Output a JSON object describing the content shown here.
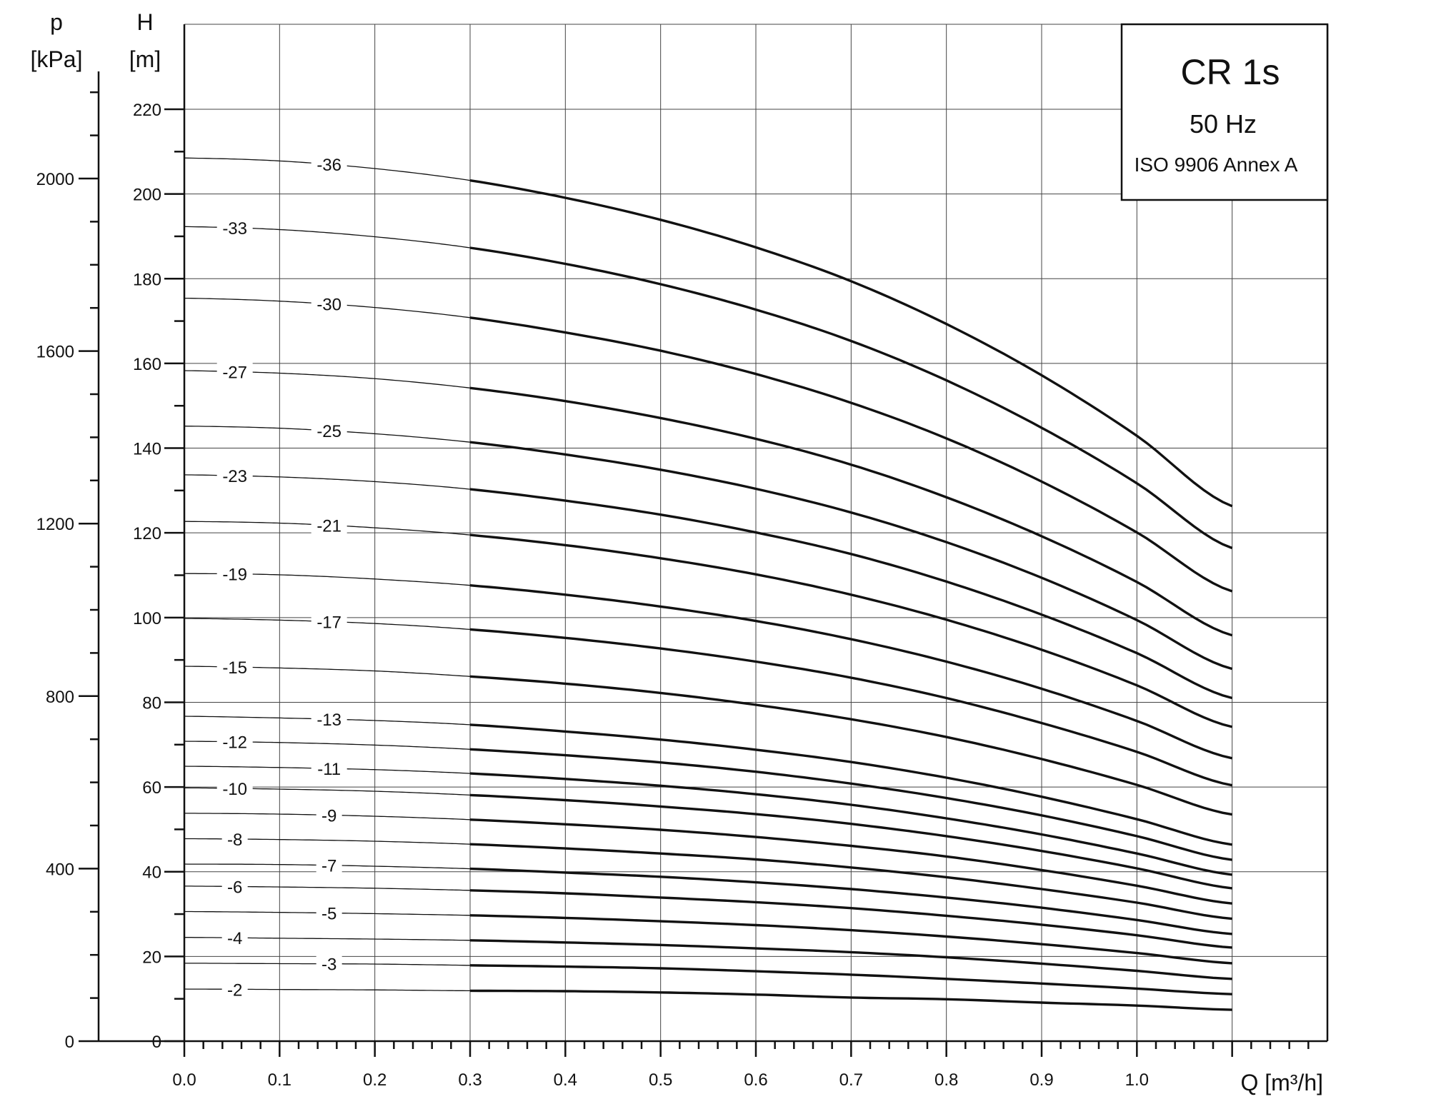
{
  "chart_data": {
    "type": "line",
    "title": "CR 1s",
    "subtitle": "50 Hz",
    "note": "ISO 9906 Annex A",
    "xlabel": "Q [m³/h]",
    "ylabel_left_title": "H",
    "ylabel_left_unit": "[m]",
    "ylabel_outer_title": "p",
    "ylabel_outer_unit": "[kPa]",
    "xlim": [
      0,
      1.2
    ],
    "ylim": [
      0,
      220
    ],
    "plim": [
      0,
      2000
    ],
    "x_ticks": [
      "0.0",
      "0.1",
      "0.2",
      "0.3",
      "0.4",
      "0.5",
      "0.6",
      "0.7",
      "0.8",
      "0.9",
      "1.0"
    ],
    "x_tick_values": [
      0,
      0.1,
      0.2,
      0.3,
      0.4,
      0.5,
      0.6,
      0.7,
      0.8,
      0.9,
      1.0
    ],
    "h_ticks": [
      "0",
      "20",
      "40",
      "60",
      "80",
      "100",
      "120",
      "140",
      "160",
      "180",
      "200",
      "220"
    ],
    "h_tick_values": [
      0,
      20,
      40,
      60,
      80,
      100,
      120,
      140,
      160,
      180,
      200,
      220
    ],
    "p_ticks": [
      "0",
      "400",
      "800",
      "1200",
      "1600",
      "2000"
    ],
    "p_tick_values": [
      0,
      400,
      800,
      1200,
      1600,
      2000
    ],
    "grid": true,
    "operating_range_q": [
      0.3,
      1.1
    ],
    "x_samples": [
      0,
      0.1,
      0.2,
      0.3,
      0.4,
      0.5,
      0.6,
      0.7,
      0.8,
      0.9,
      1.0,
      1.1
    ],
    "series": [
      {
        "name": "-2",
        "values": [
          12.3,
          12.2,
          12.1,
          11.9,
          11.8,
          11.5,
          11.0,
          10.3,
          9.9,
          9.1,
          8.4,
          7.4
        ]
      },
      {
        "name": "-3",
        "values": [
          18.4,
          18.3,
          18.2,
          17.9,
          17.6,
          17.2,
          16.5,
          15.7,
          14.7,
          13.6,
          12.4,
          11.1
        ]
      },
      {
        "name": "-4",
        "values": [
          24.5,
          24.3,
          24.1,
          23.8,
          23.3,
          22.7,
          21.9,
          21.0,
          19.8,
          18.3,
          16.6,
          14.7
        ]
      },
      {
        "name": "-5",
        "values": [
          30.6,
          30.4,
          30.1,
          29.7,
          29.1,
          28.3,
          27.4,
          26.2,
          24.7,
          22.9,
          20.8,
          18.4
        ]
      },
      {
        "name": "-6",
        "values": [
          36.6,
          36.4,
          36.1,
          35.6,
          34.9,
          33.9,
          32.8,
          31.4,
          29.6,
          27.5,
          25.0,
          22.1
        ]
      },
      {
        "name": "-7",
        "values": [
          41.8,
          41.7,
          41.3,
          40.7,
          39.8,
          38.8,
          37.5,
          35.9,
          33.9,
          31.5,
          28.6,
          25.3
        ]
      },
      {
        "name": "-8",
        "values": [
          47.8,
          47.6,
          47.2,
          46.5,
          45.5,
          44.3,
          42.9,
          41.0,
          38.7,
          35.9,
          32.7,
          28.9
        ]
      },
      {
        "name": "-9",
        "values": [
          53.8,
          53.6,
          53.1,
          52.3,
          51.2,
          49.9,
          48.2,
          46.1,
          43.6,
          40.4,
          36.7,
          32.5
        ]
      },
      {
        "name": "-10",
        "values": [
          59.8,
          59.5,
          59.0,
          58.1,
          56.9,
          55.4,
          53.6,
          51.3,
          48.4,
          44.9,
          40.8,
          36.1
        ]
      },
      {
        "name": "-11",
        "values": [
          64.9,
          64.6,
          64.1,
          63.2,
          61.9,
          60.3,
          58.3,
          55.8,
          52.6,
          48.8,
          44.3,
          39.3
        ]
      },
      {
        "name": "-12",
        "values": [
          70.8,
          70.5,
          69.9,
          68.9,
          67.5,
          65.8,
          63.6,
          60.8,
          57.4,
          53.3,
          48.4,
          42.8
        ]
      },
      {
        "name": "-13",
        "values": [
          76.7,
          76.3,
          75.7,
          74.7,
          73.1,
          71.2,
          68.8,
          65.9,
          62.2,
          57.7,
          52.4,
          46.4
        ]
      },
      {
        "name": "-15",
        "values": [
          88.5,
          88.1,
          87.4,
          86.1,
          84.4,
          82.2,
          79.4,
          76.0,
          71.8,
          66.6,
          60.5,
          53.5
        ]
      },
      {
        "name": "-17",
        "values": [
          99.8,
          99.4,
          98.6,
          97.2,
          95.2,
          92.7,
          89.6,
          85.8,
          81.0,
          75.1,
          68.3,
          60.4
        ]
      },
      {
        "name": "-19",
        "values": [
          110.4,
          110.1,
          109.1,
          107.6,
          105.4,
          102.6,
          99.2,
          94.9,
          89.6,
          83.2,
          75.6,
          66.8
        ]
      },
      {
        "name": "-21",
        "values": [
          122.7,
          122.3,
          121.2,
          119.5,
          117.1,
          114.0,
          110.2,
          105.4,
          99.5,
          92.4,
          84.0,
          74.2
        ]
      },
      {
        "name": "-23",
        "values": [
          133.7,
          133.2,
          132.1,
          130.3,
          127.6,
          124.3,
          120.1,
          115.0,
          108.5,
          100.7,
          91.6,
          81.0
        ]
      },
      {
        "name": "-25",
        "values": [
          145.2,
          144.7,
          143.4,
          141.4,
          138.5,
          134.9,
          130.4,
          124.8,
          117.8,
          109.4,
          99.4,
          87.9
        ]
      },
      {
        "name": "-27",
        "values": [
          158.3,
          157.7,
          156.4,
          154.2,
          151.1,
          147.1,
          142.2,
          136.1,
          128.4,
          119.2,
          108.4,
          95.8
        ]
      },
      {
        "name": "-30",
        "values": [
          175.4,
          174.7,
          173.2,
          170.8,
          167.3,
          163.0,
          157.5,
          150.7,
          142.3,
          132.1,
          120.1,
          106.2
        ]
      },
      {
        "name": "-33",
        "values": [
          192.3,
          191.6,
          189.9,
          187.3,
          183.5,
          178.7,
          172.7,
          165.3,
          156.0,
          144.8,
          131.7,
          116.4
        ]
      },
      {
        "name": "-36",
        "values": [
          208.5,
          207.8,
          206.0,
          203.2,
          199.1,
          193.9,
          187.4,
          179.4,
          169.3,
          157.2,
          142.9,
          126.3
        ]
      }
    ],
    "label_positions": [
      {
        "name": "-2",
        "q": 0.053
      },
      {
        "name": "-3",
        "q": 0.152
      },
      {
        "name": "-4",
        "q": 0.053
      },
      {
        "name": "-5",
        "q": 0.152
      },
      {
        "name": "-6",
        "q": 0.053
      },
      {
        "name": "-7",
        "q": 0.152
      },
      {
        "name": "-8",
        "q": 0.053
      },
      {
        "name": "-9",
        "q": 0.152
      },
      {
        "name": "-10",
        "q": 0.053
      },
      {
        "name": "-11",
        "q": 0.152
      },
      {
        "name": "-12",
        "q": 0.053
      },
      {
        "name": "-13",
        "q": 0.152
      },
      {
        "name": "-15",
        "q": 0.053
      },
      {
        "name": "-17",
        "q": 0.152
      },
      {
        "name": "-19",
        "q": 0.053
      },
      {
        "name": "-21",
        "q": 0.152
      },
      {
        "name": "-23",
        "q": 0.053
      },
      {
        "name": "-25",
        "q": 0.152
      },
      {
        "name": "-27",
        "q": 0.053
      },
      {
        "name": "-30",
        "q": 0.152
      },
      {
        "name": "-33",
        "q": 0.053
      },
      {
        "name": "-36",
        "q": 0.152
      }
    ]
  }
}
